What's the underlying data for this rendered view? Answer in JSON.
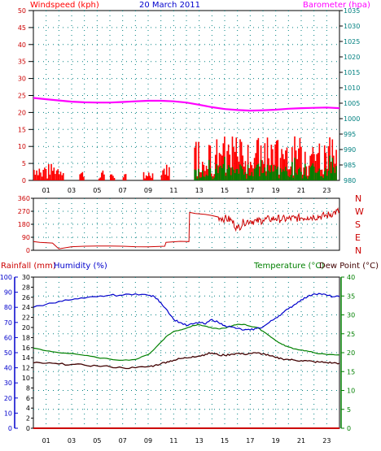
{
  "header": {
    "wind_label": "Windspeed (kph)",
    "date": "20 March 2011",
    "baro_label": "Barometer (hpa)"
  },
  "bottom_header": {
    "rain_label": "Rainfall (mm)",
    "humidity_label": "Humidity (%)",
    "temp_label": "Temperature (°C)",
    "dew_label": "Dew Point (°C)"
  },
  "hour_labels": [
    "01",
    "03",
    "05",
    "07",
    "09",
    "11",
    "13",
    "15",
    "17",
    "19",
    "21",
    "23"
  ],
  "direction_labels": [
    "N",
    "W",
    "S",
    "E",
    "N"
  ],
  "colors": {
    "wind": "#ff0000",
    "gust_fill": "#ff0000",
    "avg_fill": "#008000",
    "pressure": "#ff00ff",
    "direction": "#cc0000",
    "humidity": "#0000cc",
    "temperature": "#008000",
    "dewpoint": "#400000",
    "rain": "#cc0000",
    "grid": "#008080",
    "axis_blue": "#0000cc",
    "axis_green": "#008000",
    "axis_teal": "#008080",
    "axis_red": "#cc0000"
  },
  "chart_data": [
    {
      "type": "area",
      "x_unit": "hour",
      "xlim": [
        0,
        24
      ],
      "left_axis": {
        "label": "Windspeed (kph)",
        "ylim": [
          0,
          50
        ],
        "ticks": [
          0,
          5,
          10,
          15,
          20,
          25,
          30,
          35,
          40,
          45,
          50
        ]
      },
      "right_axis": {
        "label": "Barometer (hpa)",
        "ylim": [
          980,
          1035
        ],
        "ticks": [
          980,
          985,
          990,
          995,
          1000,
          1005,
          1010,
          1015,
          1020,
          1025,
          1030,
          1035
        ]
      },
      "pressure_x": [
        0,
        1,
        2,
        3,
        4,
        5,
        6,
        7,
        8,
        9,
        10,
        11,
        12,
        13,
        14,
        15,
        16,
        17,
        18,
        19,
        20,
        21,
        22,
        23,
        24
      ],
      "pressure": [
        1006.7,
        1006.3,
        1005.9,
        1005.5,
        1005.3,
        1005.2,
        1005.2,
        1005.4,
        1005.6,
        1005.8,
        1005.8,
        1005.6,
        1005.2,
        1004.5,
        1003.7,
        1003.1,
        1002.8,
        1002.6,
        1002.7,
        1002.9,
        1003.2,
        1003.4,
        1003.5,
        1003.6,
        1003.4
      ],
      "wind_gust_segments": [
        {
          "from": 0.0,
          "to": 2.4,
          "max": 5
        },
        {
          "from": 3.6,
          "to": 4.0,
          "max": 3
        },
        {
          "from": 5.1,
          "to": 5.6,
          "max": 3
        },
        {
          "from": 6.0,
          "to": 6.4,
          "max": 3
        },
        {
          "from": 7.0,
          "to": 7.3,
          "max": 2
        },
        {
          "from": 8.6,
          "to": 9.4,
          "max": 3
        },
        {
          "from": 10.0,
          "to": 10.7,
          "max": 5
        },
        {
          "from": 12.6,
          "to": 23.8,
          "max": 13
        }
      ]
    },
    {
      "type": "line",
      "x_unit": "hour",
      "xlim": [
        0,
        24
      ],
      "ylim": [
        0,
        360
      ],
      "yticks": [
        0,
        90,
        180,
        270,
        360
      ],
      "direction_x": [
        0,
        0.5,
        1.5,
        2,
        3,
        4,
        5,
        6,
        7,
        8,
        9,
        10.3,
        10.4,
        11.5,
        12.2,
        12.25,
        12.7,
        13.5,
        14,
        14.5,
        15,
        15.5,
        16,
        16.5,
        17,
        17.5,
        18,
        18.5,
        19,
        19.5,
        20,
        20.5,
        21,
        21.5,
        22,
        22.5,
        23,
        23.5,
        24
      ],
      "direction": [
        60,
        55,
        50,
        10,
        25,
        28,
        30,
        30,
        28,
        25,
        24,
        28,
        55,
        62,
        60,
        262,
        255,
        248,
        240,
        230,
        220,
        210,
        150,
        195,
        205,
        200,
        210,
        215,
        220,
        215,
        218,
        222,
        225,
        230,
        232,
        235,
        240,
        258,
        272
      ]
    },
    {
      "type": "line",
      "x_unit": "hour",
      "xlim": [
        0,
        24
      ],
      "left_axis": {
        "label": "Humidity (%)",
        "ylim": [
          0,
          100
        ],
        "ticks": [
          0,
          10,
          20,
          30,
          40,
          50,
          60,
          70,
          80,
          90,
          100
        ]
      },
      "rain_axis": {
        "label": "Rainfall (mm)",
        "ylim": [
          0,
          30
        ],
        "ticks": [
          0,
          2,
          4,
          6,
          8,
          10,
          12,
          14,
          16,
          18,
          20,
          22,
          24,
          26,
          28,
          30
        ]
      },
      "right_axis": {
        "label": "Temperature (°C)",
        "ylim": [
          0,
          40
        ],
        "ticks": [
          0,
          5,
          10,
          15,
          20,
          25,
          30,
          35,
          40
        ]
      },
      "series": [
        {
          "name": "Humidity (%)",
          "x": [
            0,
            1,
            2,
            3,
            4,
            5,
            6,
            7,
            8,
            9,
            9.5,
            10,
            10.5,
            11,
            11.5,
            12,
            12.5,
            13,
            13.5,
            14,
            14.5,
            15,
            15.5,
            16,
            16.5,
            17,
            17.5,
            18,
            18.5,
            19,
            19.5,
            20,
            20.5,
            21,
            21.5,
            22,
            22.5,
            23,
            23.5,
            24
          ],
          "values": [
            80,
            82,
            84,
            85,
            86,
            87,
            88,
            88,
            89,
            88,
            87,
            83,
            78,
            72,
            70,
            68,
            69,
            70,
            69,
            72,
            70,
            68,
            67,
            66,
            65,
            65,
            66,
            67,
            70,
            73,
            76,
            79,
            82,
            85,
            87,
            89,
            89,
            88,
            87,
            87
          ]
        },
        {
          "name": "Temperature (°C)",
          "x": [
            0,
            1,
            2,
            3,
            4,
            5,
            6,
            7,
            8,
            9,
            9.5,
            10,
            10.5,
            11,
            11.5,
            12,
            12.5,
            13,
            13.5,
            14,
            14.5,
            15,
            15.5,
            16,
            16.5,
            17,
            17.5,
            18,
            18.5,
            19,
            19.5,
            20,
            20.5,
            21,
            21.5,
            22,
            22.5,
            23,
            23.5,
            24
          ],
          "values": [
            21.2,
            20.5,
            20.0,
            19.8,
            19.3,
            18.7,
            18.3,
            18.0,
            18.2,
            19.5,
            21.0,
            22.8,
            24.5,
            25.6,
            26.0,
            26.5,
            27.2,
            27.4,
            27.0,
            26.5,
            26.3,
            26.5,
            27.0,
            27.5,
            27.5,
            27.0,
            26.7,
            25.7,
            24.5,
            23.2,
            22.2,
            21.5,
            21.0,
            20.7,
            20.4,
            20.0,
            19.7,
            19.5,
            19.5,
            19.4
          ]
        },
        {
          "name": "Dew Point (°C)",
          "x": [
            0,
            1,
            2,
            3,
            4,
            5,
            6,
            7,
            8,
            9,
            9.5,
            10,
            10.5,
            11,
            11.5,
            12,
            12.5,
            13,
            13.5,
            14,
            14.5,
            15,
            15.5,
            16,
            16.5,
            17,
            17.5,
            18,
            18.5,
            19,
            19.5,
            20,
            20.5,
            21,
            21.5,
            22,
            22.5,
            23,
            23.5,
            24
          ],
          "values": [
            17.3,
            17.2,
            17.0,
            16.9,
            16.7,
            16.5,
            16.3,
            16.0,
            16.0,
            16.3,
            16.6,
            17.1,
            17.6,
            18.0,
            18.4,
            18.6,
            19.0,
            19.1,
            19.6,
            19.9,
            19.4,
            19.3,
            19.6,
            19.8,
            19.6,
            19.8,
            19.9,
            19.7,
            19.2,
            18.7,
            18.4,
            18.2,
            18.0,
            17.9,
            17.8,
            17.6,
            17.5,
            17.4,
            17.3,
            17.2
          ]
        },
        {
          "name": "Rainfall (mm)",
          "x": [
            0,
            24
          ],
          "values": [
            0,
            0
          ]
        }
      ]
    }
  ]
}
